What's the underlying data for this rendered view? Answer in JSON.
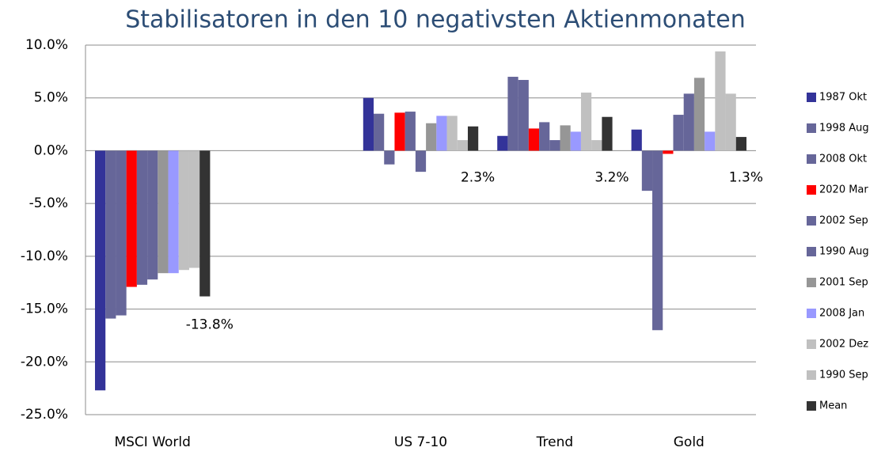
{
  "chart_data": {
    "type": "bar",
    "title": "Stabilisatoren in den 10 negativsten Aktienmonaten",
    "categories": [
      "MSCI World",
      null,
      "US 7-10",
      "Trend",
      "Gold"
    ],
    "series": [
      {
        "name": "1987 Okt",
        "color": "#333399",
        "values": [
          -22.7,
          null,
          5.0,
          1.4,
          2.0
        ]
      },
      {
        "name": "1998 Aug",
        "color": "#666699",
        "values": [
          -15.9,
          null,
          3.5,
          7.0,
          -3.8
        ]
      },
      {
        "name": "2008 Okt",
        "color": "#666699",
        "values": [
          -15.6,
          null,
          -1.3,
          6.7,
          -17.0
        ]
      },
      {
        "name": "2020 Mar",
        "color": "#ff0000",
        "values": [
          -12.9,
          null,
          3.6,
          2.1,
          -0.3
        ]
      },
      {
        "name": "2002 Sep",
        "color": "#666699",
        "values": [
          -12.7,
          null,
          3.7,
          2.7,
          3.4
        ]
      },
      {
        "name": "1990 Aug",
        "color": "#666699",
        "values": [
          -12.2,
          null,
          -2.0,
          1.0,
          5.4
        ]
      },
      {
        "name": "2001 Sep",
        "color": "#969696",
        "values": [
          -11.6,
          null,
          2.6,
          2.4,
          6.9
        ]
      },
      {
        "name": "2008 Jan",
        "color": "#9999ff",
        "values": [
          -11.6,
          null,
          3.3,
          1.8,
          1.8
        ]
      },
      {
        "name": "2002 Dez",
        "color": "#c0c0c0",
        "values": [
          -11.3,
          null,
          3.3,
          5.5,
          9.4
        ]
      },
      {
        "name": "1990 Sep",
        "color": "#c0c0c0",
        "values": [
          -11.1,
          null,
          1.0,
          1.0,
          5.4
        ]
      },
      {
        "name": "Mean",
        "color": "#333333",
        "values": [
          -13.8,
          null,
          2.3,
          3.2,
          1.3
        ],
        "value_labels": [
          "-13.8%",
          null,
          "2.3%",
          "3.2%",
          "1.3%"
        ]
      }
    ],
    "ylim": [
      -25,
      10
    ],
    "yticks": [
      {
        "value": -25,
        "label": "-25.0%"
      },
      {
        "value": -20,
        "label": "-20.0%"
      },
      {
        "value": -15,
        "label": "-15.0%"
      },
      {
        "value": -10,
        "label": "-10.0%"
      },
      {
        "value": -5,
        "label": "-5.0%"
      },
      {
        "value": 0,
        "label": "0.0%"
      },
      {
        "value": 5,
        "label": "5.0%"
      },
      {
        "value": 10,
        "label": "10.0%"
      }
    ],
    "grid": true,
    "legend": "right"
  }
}
